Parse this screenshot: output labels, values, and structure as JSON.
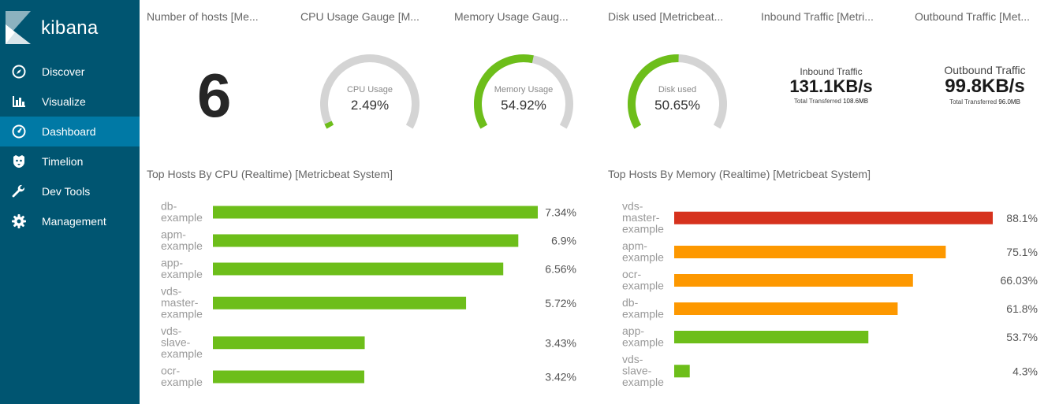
{
  "brand": {
    "name": "kibana"
  },
  "sidebar": {
    "items": [
      {
        "label": "Discover",
        "icon": "compass-icon",
        "active": false
      },
      {
        "label": "Visualize",
        "icon": "bar-chart-icon",
        "active": false
      },
      {
        "label": "Dashboard",
        "icon": "dashboard-icon",
        "active": true
      },
      {
        "label": "Timelion",
        "icon": "timelion-icon",
        "active": false
      },
      {
        "label": "Dev Tools",
        "icon": "wrench-icon",
        "active": false
      },
      {
        "label": "Management",
        "icon": "gear-icon",
        "active": false
      }
    ]
  },
  "panels": {
    "hosts_title": "Number of hosts [Me...",
    "hosts_value": "6",
    "cpu_title": "CPU Usage Gauge [M...",
    "mem_title": "Memory Usage Gaug...",
    "disk_title": "Disk used [Metricbeat...",
    "inbound_title": "Inbound Traffic [Metri...",
    "outbound_title": "Outbound Traffic [Met..."
  },
  "gauges": {
    "cpu": {
      "label": "CPU Usage",
      "value_text": "2.49%",
      "fraction": 0.0249
    },
    "memory": {
      "label": "Memory Usage",
      "value_text": "54.92%",
      "fraction": 0.5492
    },
    "disk": {
      "label": "Disk used",
      "value_text": "50.65%",
      "fraction": 0.5065
    },
    "colors": {
      "fill": "#6dbe1a",
      "track": "#d4d4d4"
    }
  },
  "traffic": {
    "inbound": {
      "title": "Inbound Traffic",
      "value": "131.1KB/s",
      "sub_label": "Total Transferred",
      "sub_value": "108.6MB"
    },
    "outbound": {
      "title": "Outbound Traffic",
      "value": "99.8KB/s",
      "sub_label": "Total Transferred",
      "sub_value": "96.0MB"
    }
  },
  "charts": {
    "cpu_title": "Top Hosts By CPU (Realtime) [Metricbeat System]",
    "mem_title": "Top Hosts By Memory (Realtime) [Metricbeat System]"
  },
  "chart_data": [
    {
      "type": "bar",
      "orientation": "horizontal",
      "title": "Top Hosts By CPU (Realtime) [Metricbeat System]",
      "categories": [
        "db-example",
        "apm-example",
        "app-example",
        "vds-master-example",
        "vds-slave-example",
        "ocr-example"
      ],
      "category_lines": [
        [
          "db-",
          "example"
        ],
        [
          "apm-",
          "example"
        ],
        [
          "app-",
          "example"
        ],
        [
          "vds-",
          "master-",
          "example"
        ],
        [
          "vds-",
          "slave-",
          "example"
        ],
        [
          "ocr-",
          "example"
        ]
      ],
      "values": [
        7.34,
        6.9,
        6.56,
        5.72,
        3.43,
        3.42
      ],
      "value_labels": [
        "7.34%",
        "6.9%",
        "6.56%",
        "5.72%",
        "3.43%",
        "3.42%"
      ],
      "colors": [
        "#6dbe1a",
        "#6dbe1a",
        "#6dbe1a",
        "#6dbe1a",
        "#6dbe1a",
        "#6dbe1a"
      ],
      "xlim": [
        0,
        7.34
      ]
    },
    {
      "type": "bar",
      "orientation": "horizontal",
      "title": "Top Hosts By Memory (Realtime) [Metricbeat System]",
      "categories": [
        "vds-master-example",
        "apm-example",
        "ocr-example",
        "db-example",
        "app-example",
        "vds-slave-example"
      ],
      "category_lines": [
        [
          "vds-",
          "master-",
          "example"
        ],
        [
          "apm-",
          "example"
        ],
        [
          "ocr-",
          "example"
        ],
        [
          "db-",
          "example"
        ],
        [
          "app-",
          "example"
        ],
        [
          "vds-",
          "slave-",
          "example"
        ]
      ],
      "values": [
        88.1,
        75.1,
        66.03,
        61.8,
        53.7,
        4.3
      ],
      "value_labels": [
        "88.1%",
        "75.1%",
        "66.03%",
        "61.8%",
        "53.7%",
        "4.3%"
      ],
      "colors": [
        "#d6321d",
        "#fd9800",
        "#fd9800",
        "#fd9800",
        "#6dbe1a",
        "#6dbe1a"
      ],
      "xlim": [
        0,
        88.1
      ]
    }
  ]
}
